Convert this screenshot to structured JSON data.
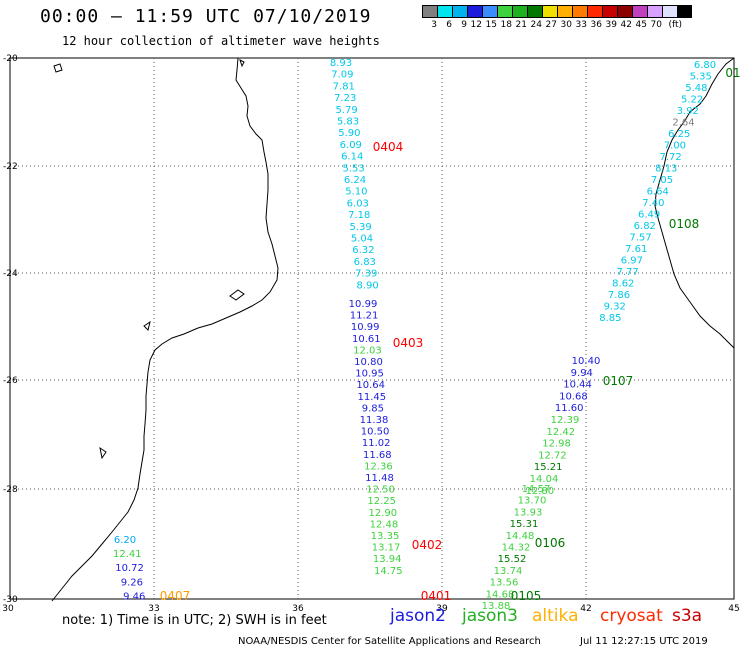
{
  "header": {
    "title": "00:00 – 11:59 UTC 07/10/2019",
    "subtitle": "12 hour collection of altimeter wave heights"
  },
  "scale": {
    "unit_label": "(ft)",
    "colors": [
      "#808080",
      "#00e5ee",
      "#00b2ee",
      "#1c1cdd",
      "#3a8cff",
      "#3ed23e",
      "#21b021",
      "#007800",
      "#f0e000",
      "#ffb000",
      "#ff7a00",
      "#ff2a00",
      "#c80000",
      "#8b0000",
      "#c040c0",
      "#d8a0ff",
      "#e0e0ff",
      "#000000"
    ],
    "labels": [
      "3",
      "6",
      "9",
      "12",
      "15",
      "18",
      "21",
      "24",
      "27",
      "30",
      "33",
      "36",
      "39",
      "42",
      "45",
      "70"
    ]
  },
  "axes": {
    "lon_labels": [
      "30",
      "33",
      "36",
      "39",
      "42",
      "45"
    ],
    "lat_labels": [
      "-20",
      "-22",
      "-24",
      "-26",
      "-28",
      "-30"
    ]
  },
  "tracks": {
    "t0404": {
      "label": "0404",
      "values": [
        "8.93",
        "7.09",
        "7.81",
        "7.23",
        "5.79",
        "5.83",
        "5.90",
        "6.09",
        "6.14",
        "5.53",
        "6.24",
        "5.10",
        "6.03",
        "7.18",
        "5.39",
        "5.04",
        "6.32",
        "6.83",
        "7.39",
        "8.90"
      ]
    },
    "t0403": {
      "label": "0403",
      "values": [
        "10.99",
        "11.21",
        "10.99",
        "10.61",
        "12.03",
        "10.80",
        "10.95",
        "10.64",
        "11.45",
        "9.85",
        "11.38",
        "10.50",
        "11.02",
        "11.68",
        "12.36",
        "11.48",
        "12.50",
        "12.25",
        "12.90",
        "12.48",
        "13.35",
        "13.17",
        "13.94",
        "14.75"
      ]
    },
    "t0402": {
      "label": "0402"
    },
    "t0401": {
      "label": "0401"
    },
    "t0407": {
      "label": "0407",
      "values": [
        "6.20",
        "12.41",
        "10.72",
        "9.26",
        "9.46"
      ]
    },
    "t0108": {
      "label": "0108",
      "values": [
        "6.80",
        "5.35",
        "5.48",
        "5.22",
        "3.92",
        "2.64",
        "6.25",
        "7.00",
        "7.72",
        "8.13",
        "7.05",
        "6.64",
        "7.40",
        "6.49",
        "6.82",
        "7.57",
        "7.61",
        "6.97",
        "7.77",
        "8.62",
        "7.86",
        "9.32",
        "8.85"
      ]
    },
    "t0107": {
      "label": "0107",
      "values": [
        "10.40",
        "9.94",
        "10.44",
        "10.68",
        "11.60",
        "12.39",
        "12.42",
        "12.98",
        "12.72",
        "15.21",
        "14.04",
        "12.80"
      ]
    },
    "t0106": {
      "label": "0106",
      "values": [
        "14.57",
        "13.70",
        "13.93",
        "15.31",
        "14.48",
        "14.32",
        "15.52",
        "13.74",
        "13.56",
        "14.68",
        "13.88"
      ]
    },
    "t0105": {
      "label": "0105"
    },
    "t01_top": {
      "label": "01"
    }
  },
  "footer": {
    "note": "note: 1) Time is in UTC; 2) SWH is in feet",
    "credit": "NOAA/NESDIS Center for Satellite Applications and Research",
    "timestamp": "Jul 11 12:27:15 UTC 2019"
  },
  "legend": [
    {
      "name": "jason2",
      "color": "#1c1cdd"
    },
    {
      "name": "jason3",
      "color": "#21b021"
    },
    {
      "name": "altika",
      "color": "#ffb000"
    },
    {
      "name": "cryosat",
      "color": "#ff2a00"
    },
    {
      "name": "s3a",
      "color": "#c80000"
    }
  ],
  "colors": {
    "cyan": "#00c8e8",
    "sky": "#00a8ee",
    "blue": "#1c1cdd",
    "green": "#3ed23e",
    "darkgreen": "#007800",
    "red": "#ff0000",
    "orange": "#ff9c00",
    "gray": "#808080"
  }
}
